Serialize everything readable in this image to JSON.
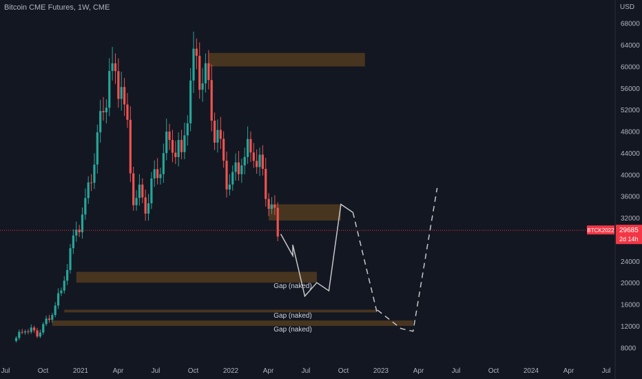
{
  "header": {
    "title": "Bitcoin CME Futures, 1W, CME",
    "unit": "USD"
  },
  "chart_data": {
    "type": "candlestick",
    "title": "Bitcoin CME Futures, 1W, CME",
    "x_axis_labels": [
      "Jul",
      "Oct",
      "2021",
      "Apr",
      "Jul",
      "Oct",
      "2022",
      "Apr",
      "Jul",
      "Oct",
      "2023",
      "Apr",
      "Jul",
      "Oct",
      "2024",
      "Apr",
      "Jul"
    ],
    "y_ticks": [
      8000,
      12000,
      16000,
      20000,
      24000,
      28000,
      32000,
      36000,
      40000,
      44000,
      48000,
      52000,
      56000,
      60000,
      64000,
      68000
    ],
    "ylim": [
      6000,
      70000
    ],
    "current_price": {
      "label": "BTCK2022",
      "value": "29685",
      "time_left": "2d 14h",
      "level": 29685,
      "color": "#f23645"
    },
    "colors": {
      "up": "#26a69a",
      "down": "#ef5350",
      "zone": "#8a5a1c",
      "projection": "#c8c8c8",
      "background": "#131722"
    },
    "price_series": [
      {
        "date": "2020-07",
        "close": 9200
      },
      {
        "date": "2020-08",
        "close": 11500
      },
      {
        "date": "2020-09",
        "close": 10700
      },
      {
        "date": "2020-10",
        "close": 13500
      },
      {
        "date": "2020-11",
        "close": 18500
      },
      {
        "date": "2020-12",
        "close": 28000
      },
      {
        "date": "2021-01",
        "close": 34000
      },
      {
        "date": "2021-02",
        "close": 46000
      },
      {
        "date": "2021-03",
        "close": 58000
      },
      {
        "date": "2021-04",
        "close": 57000
      },
      {
        "date": "2021-05",
        "close": 37000
      },
      {
        "date": "2021-06",
        "close": 35000
      },
      {
        "date": "2021-07",
        "close": 41000
      },
      {
        "date": "2021-08",
        "close": 47000
      },
      {
        "date": "2021-09",
        "close": 43000
      },
      {
        "date": "2021-10",
        "close": 61000
      },
      {
        "date": "2021-11",
        "close": 57000
      },
      {
        "date": "2021-12",
        "close": 46000
      },
      {
        "date": "2022-01",
        "close": 38000
      },
      {
        "date": "2022-02",
        "close": 43000
      },
      {
        "date": "2022-03",
        "close": 45000
      },
      {
        "date": "2022-04",
        "close": 38000
      },
      {
        "date": "2022-05",
        "close": 29685
      }
    ],
    "zones": [
      {
        "from": "2021-11",
        "to": "2022-12",
        "low": 60000,
        "high": 62500
      },
      {
        "from": "2022-04",
        "to": "2022-10",
        "low": 31500,
        "high": 34500
      },
      {
        "from": "2020-12",
        "to": "2022-08",
        "low": 20000,
        "high": 22000
      },
      {
        "from": "2020-11",
        "to": "2023-01",
        "low": 14500,
        "high": 15000
      },
      {
        "from": "2020-10",
        "to": "2023-04",
        "low": 12000,
        "high": 13000
      }
    ],
    "annotations": [
      {
        "text": "Gap (naked)",
        "date": "2022-06",
        "price": 19000
      },
      {
        "text": "Gap (naked)",
        "date": "2022-06",
        "price": 13500
      },
      {
        "text": "Gap (naked)",
        "date": "2022-06",
        "price": 11000
      }
    ],
    "projection_solid": [
      {
        "date": "2022-05",
        "price": 29000
      },
      {
        "date": "2022-06",
        "price": 25000
      },
      {
        "date": "2022-06",
        "price": 27000
      },
      {
        "date": "2022-07",
        "price": 17500
      },
      {
        "date": "2022-08",
        "price": 20000
      },
      {
        "date": "2022-09",
        "price": 18500
      },
      {
        "date": "2022-10",
        "price": 34500
      },
      {
        "date": "2022-11",
        "price": 33000
      }
    ],
    "projection_dashed": [
      {
        "date": "2022-11",
        "price": 33000
      },
      {
        "date": "2023-01",
        "price": 14500
      },
      {
        "date": "2023-01",
        "price": 15000
      },
      {
        "date": "2023-03",
        "price": 11500
      },
      {
        "date": "2023-04",
        "price": 11000
      },
      {
        "date": "2023-06",
        "price": 37500
      },
      {
        "date": "2023-06",
        "price": 36500
      }
    ]
  }
}
